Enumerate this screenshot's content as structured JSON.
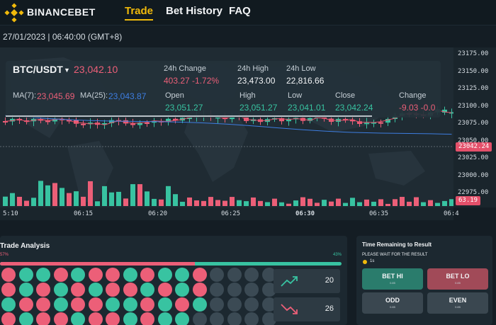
{
  "brand": {
    "name": "BINANCEBET"
  },
  "nav": {
    "trade": "Trade",
    "history": "Bet History",
    "faq": "FAQ"
  },
  "datetime": "27/01/2023 | 06:40:00 (GMT+8)",
  "ticker": {
    "symbol": "BTC/USDT",
    "caret": "▼",
    "price": "23,042.10",
    "change_24h_label": "24h Change",
    "change_24h": "403.27 -1.72%",
    "high_24h_label": "24h High",
    "high_24h": "23,473.00",
    "low_24h_label": "24h Low",
    "low_24h": "22,816.66",
    "ma7_label": "MA(7):",
    "ma7": "23,045.69",
    "ma25_label": "MA(25):",
    "ma25": "23,043.87",
    "open_label": "Open",
    "open": "23,051.27",
    "high_label": "High",
    "high": "23,051.27",
    "low_label": "Low",
    "low": "23,041.01",
    "close_label": "Close",
    "close": "23,042.24",
    "change_label": "Change",
    "change": "-9.03 -0.0"
  },
  "chart_data": {
    "type": "candlestick",
    "y_axis": {
      "min": 22960,
      "max": 23185,
      "ticks": [
        "23175.00",
        "23150.00",
        "23125.00",
        "23100.00",
        "23075.00",
        "23050.00",
        "23025.00",
        "23000.00",
        "22975.00"
      ]
    },
    "x_ticks": [
      "5:10",
      "06:15",
      "06:20",
      "06:25",
      "06:30",
      "06:35",
      "06:4"
    ],
    "last_price_label": "23042.24",
    "volume_label": "63.19",
    "colors": {
      "up": "#38c3a1",
      "down": "#ec5f78",
      "ma7": "#e4506a",
      "ma25": "#3d7de0"
    }
  },
  "trade_analysis": {
    "title": "Trade Analysis",
    "left_pct": "57%",
    "right_pct": "43%",
    "red_fraction": 0.57,
    "up_count": "20",
    "down_count": "26",
    "grid": [
      "RGGRGRRGRGGRCCCC",
      "RGRGRGRRGRGRCCCC",
      "GRRGRRGGRGRGCCCC",
      "RGRRGRRGRGGCCCCC"
    ],
    "icons": {
      "up": "trend-up-icon",
      "down": "trend-down-icon"
    }
  },
  "time_panel": {
    "title": "Time Remaining to Result",
    "subtitle": "PLEASE WAIT FOR THE RESULT",
    "timer": "1s"
  },
  "bets": [
    {
      "label": "BET HI",
      "odds": "0.85"
    },
    {
      "label": "BET LO",
      "odds": "0.85"
    },
    {
      "label": "ODD",
      "odds": "0.85"
    },
    {
      "label": "EVEN",
      "odds": "0.85"
    }
  ]
}
